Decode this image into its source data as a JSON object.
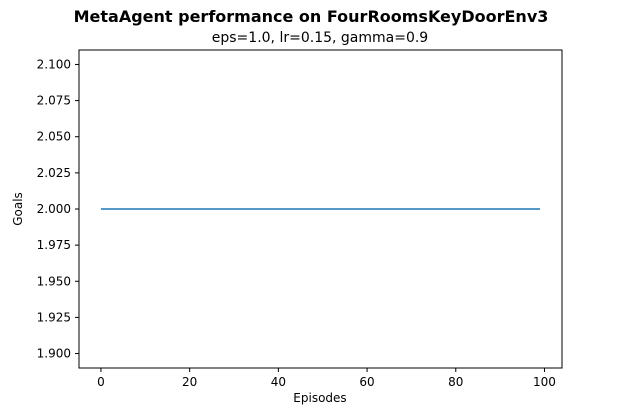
{
  "chart_data": {
    "type": "line",
    "title": "MetaAgent performance on FourRoomsKeyDoorEnv3",
    "subtitle": "eps=1.0, lr=0.15, gamma=0.9",
    "xlabel": "Episodes",
    "ylabel": "Goals",
    "xlim": [
      -4.95,
      103.95
    ],
    "ylim": [
      1.89,
      2.11
    ],
    "xticks": [
      0,
      20,
      40,
      60,
      80,
      100
    ],
    "xtick_labels": [
      "0",
      "20",
      "40",
      "60",
      "80",
      "100"
    ],
    "yticks": [
      1.9,
      1.925,
      1.95,
      1.975,
      2.0,
      2.025,
      2.05,
      2.075,
      2.1
    ],
    "ytick_labels": [
      "1.900",
      "1.925",
      "1.950",
      "1.975",
      "2.000",
      "2.025",
      "2.050",
      "2.075",
      "2.100"
    ],
    "grid": false,
    "series": [
      {
        "color": "#1f77b4",
        "x": [
          0,
          99
        ],
        "y": [
          2.0,
          2.0
        ],
        "x_range_note_points": 100
      }
    ]
  }
}
